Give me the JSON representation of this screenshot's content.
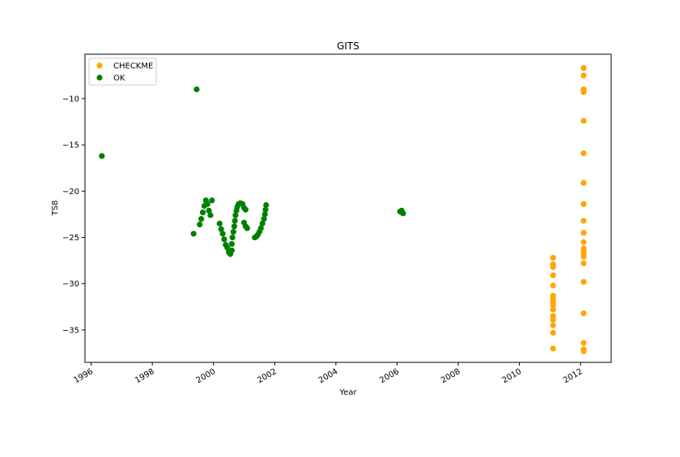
{
  "chart_data": {
    "type": "scatter",
    "title": "GITS",
    "xlabel": "Year",
    "ylabel": "TS8",
    "xlim": [
      1995.8,
      2013.0
    ],
    "ylim": [
      -38.5,
      -5.2
    ],
    "grid": false,
    "legend_position": "top-left",
    "xticks": [
      1996,
      1998,
      2000,
      2002,
      2004,
      2006,
      2008,
      2010,
      2012
    ],
    "yticks": [
      -35,
      -30,
      -25,
      -20,
      -15,
      -10
    ],
    "series": [
      {
        "name": "CHECKME",
        "color": "#ffa500",
        "points": [
          [
            2011.1,
            -27.2
          ],
          [
            2011.1,
            -27.9
          ],
          [
            2011.1,
            -28.2
          ],
          [
            2011.1,
            -29.1
          ],
          [
            2011.1,
            -30.2
          ],
          [
            2011.1,
            -31.3
          ],
          [
            2011.1,
            -31.7
          ],
          [
            2011.1,
            -32.0
          ],
          [
            2011.1,
            -32.3
          ],
          [
            2011.1,
            -32.8
          ],
          [
            2011.1,
            -33.5
          ],
          [
            2011.1,
            -33.9
          ],
          [
            2011.1,
            -34.5
          ],
          [
            2011.1,
            -35.3
          ],
          [
            2011.1,
            -37.0
          ],
          [
            2012.1,
            -6.7
          ],
          [
            2012.1,
            -7.5
          ],
          [
            2012.1,
            -9.0
          ],
          [
            2012.1,
            -9.3
          ],
          [
            2012.1,
            -12.4
          ],
          [
            2012.1,
            -15.9
          ],
          [
            2012.1,
            -19.1
          ],
          [
            2012.1,
            -21.4
          ],
          [
            2012.1,
            -23.2
          ],
          [
            2012.1,
            -24.5
          ],
          [
            2012.1,
            -25.5
          ],
          [
            2012.1,
            -26.2
          ],
          [
            2012.1,
            -26.5
          ],
          [
            2012.1,
            -26.8
          ],
          [
            2012.1,
            -27.1
          ],
          [
            2012.1,
            -27.8
          ],
          [
            2012.1,
            -29.8
          ],
          [
            2012.1,
            -33.2
          ],
          [
            2012.1,
            -36.4
          ],
          [
            2012.1,
            -37.1
          ],
          [
            2012.1,
            -37.3
          ]
        ]
      },
      {
        "name": "OK",
        "color": "#008000",
        "points": [
          [
            1996.35,
            -16.2
          ],
          [
            1999.45,
            -9.0
          ],
          [
            1999.35,
            -24.6
          ],
          [
            1999.55,
            -23.6
          ],
          [
            1999.6,
            -23.0
          ],
          [
            1999.65,
            -22.3
          ],
          [
            1999.7,
            -21.6
          ],
          [
            1999.75,
            -21.0
          ],
          [
            1999.8,
            -21.4
          ],
          [
            1999.85,
            -22.1
          ],
          [
            1999.9,
            -22.6
          ],
          [
            1999.95,
            -21.0
          ],
          [
            2000.2,
            -23.5
          ],
          [
            2000.25,
            -24.1
          ],
          [
            2000.3,
            -24.6
          ],
          [
            2000.35,
            -25.2
          ],
          [
            2000.4,
            -25.8
          ],
          [
            2000.45,
            -26.1
          ],
          [
            2000.5,
            -26.6
          ],
          [
            2000.55,
            -26.8
          ],
          [
            2000.6,
            -26.4
          ],
          [
            2000.6,
            -25.7
          ],
          [
            2000.62,
            -25.0
          ],
          [
            2000.65,
            -24.4
          ],
          [
            2000.68,
            -23.8
          ],
          [
            2000.7,
            -23.2
          ],
          [
            2000.72,
            -22.6
          ],
          [
            2000.75,
            -22.1
          ],
          [
            2000.78,
            -21.7
          ],
          [
            2000.82,
            -21.4
          ],
          [
            2000.88,
            -21.3
          ],
          [
            2000.95,
            -21.4
          ],
          [
            2001.0,
            -21.8
          ],
          [
            2001.05,
            -22.0
          ],
          [
            2001.0,
            -23.4
          ],
          [
            2001.05,
            -23.8
          ],
          [
            2001.1,
            -24.0
          ],
          [
            2001.35,
            -25.0
          ],
          [
            2001.4,
            -24.9
          ],
          [
            2001.45,
            -24.7
          ],
          [
            2001.5,
            -24.4
          ],
          [
            2001.55,
            -24.0
          ],
          [
            2001.6,
            -23.5
          ],
          [
            2001.65,
            -23.0
          ],
          [
            2001.68,
            -22.5
          ],
          [
            2001.7,
            -22.0
          ],
          [
            2001.72,
            -21.5
          ],
          [
            2006.15,
            -22.1
          ],
          [
            2006.15,
            -22.3
          ],
          [
            2006.2,
            -22.4
          ],
          [
            2006.1,
            -22.2
          ]
        ]
      }
    ]
  }
}
